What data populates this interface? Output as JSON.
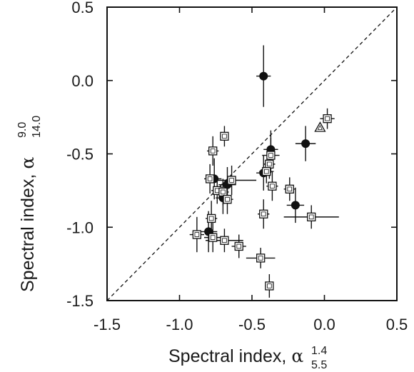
{
  "chart_data": {
    "type": "scatter",
    "xlabel": {
      "text": "Spectral index, ",
      "symbol": "α",
      "sub": "5.5",
      "sup": "1.4"
    },
    "ylabel": {
      "text": "Spectral index, ",
      "symbol": "α",
      "sub": "14.0",
      "sup": "9.0"
    },
    "xlim": [
      -1.5,
      0.5
    ],
    "ylim": [
      -1.5,
      0.5
    ],
    "xticks": [
      -1.5,
      -1.0,
      -0.5,
      0.0,
      0.5
    ],
    "yticks": [
      -1.5,
      -1.0,
      -0.5,
      0.0,
      0.5
    ],
    "xtick_labels": [
      "-1.5",
      "-1.0",
      "-0.5",
      "0.0",
      "0.5"
    ],
    "ytick_labels": [
      "-1.5",
      "-1.0",
      "-0.5",
      "0.0",
      "0.5"
    ],
    "grid": false,
    "reference_line": "y = x (dashed)",
    "colors": {
      "marker": "#111111",
      "fill_open": "#ffffff"
    },
    "series": [
      {
        "marker": "filled-circle",
        "points": [
          {
            "x": -0.42,
            "y": 0.03,
            "xerr": 0.05,
            "yerr": 0.21
          },
          {
            "x": -0.37,
            "y": -0.47,
            "xerr": 0.05,
            "yerr": 0.13
          },
          {
            "x": -0.13,
            "y": -0.43,
            "xerr": 0.07,
            "yerr": 0.12
          },
          {
            "x": -0.42,
            "y": -0.63,
            "xerr": 0.05,
            "yerr": 0.12
          },
          {
            "x": -0.76,
            "y": -0.67,
            "xerr": 0.05,
            "yerr": 0.14
          },
          {
            "x": -0.67,
            "y": -0.71,
            "xerr": 0.06,
            "yerr": 0.12
          },
          {
            "x": -0.7,
            "y": -0.8,
            "xerr": 0.05,
            "yerr": 0.11
          },
          {
            "x": -0.2,
            "y": -0.85,
            "xerr": 0.06,
            "yerr": 0.12
          },
          {
            "x": -0.8,
            "y": -1.03,
            "xerr": 0.06,
            "yerr": 0.14
          }
        ]
      },
      {
        "marker": "open-square",
        "points": [
          {
            "x": 0.02,
            "y": -0.26,
            "xerr": 0.05,
            "yerr": 0.07
          },
          {
            "x": -0.69,
            "y": -0.38,
            "xerr": 0.03,
            "yerr": 0.07
          },
          {
            "x": -0.77,
            "y": -0.48,
            "xerr": 0.04,
            "yerr": 0.1
          },
          {
            "x": -0.37,
            "y": -0.51,
            "xerr": 0.06,
            "yerr": 0.12
          },
          {
            "x": -0.38,
            "y": -0.57,
            "xerr": 0.04,
            "yerr": 0.1
          },
          {
            "x": -0.4,
            "y": -0.62,
            "xerr": 0.05,
            "yerr": 0.08
          },
          {
            "x": -0.79,
            "y": -0.67,
            "xerr": 0.04,
            "yerr": 0.1
          },
          {
            "x": -0.64,
            "y": -0.68,
            "xerr": 0.17,
            "yerr": 0.1
          },
          {
            "x": -0.36,
            "y": -0.72,
            "xerr": 0.04,
            "yerr": 0.1
          },
          {
            "x": -0.24,
            "y": -0.74,
            "xerr": 0.04,
            "yerr": 0.08
          },
          {
            "x": -0.74,
            "y": -0.75,
            "xerr": 0.04,
            "yerr": 0.09
          },
          {
            "x": -0.7,
            "y": -0.76,
            "xerr": 0.04,
            "yerr": 0.09
          },
          {
            "x": -0.67,
            "y": -0.81,
            "xerr": 0.04,
            "yerr": 0.1
          },
          {
            "x": -0.42,
            "y": -0.91,
            "xerr": 0.04,
            "yerr": 0.1
          },
          {
            "x": -0.09,
            "y": -0.93,
            "xerr": 0.19,
            "yerr": 0.08
          },
          {
            "x": -0.78,
            "y": -0.94,
            "xerr": 0.04,
            "yerr": 0.12
          },
          {
            "x": -0.88,
            "y": -1.05,
            "xerr": 0.05,
            "yerr": 0.12
          },
          {
            "x": -0.77,
            "y": -1.07,
            "xerr": 0.06,
            "yerr": 0.1
          },
          {
            "x": -0.69,
            "y": -1.09,
            "xerr": 0.13,
            "yerr": 0.08
          },
          {
            "x": -0.59,
            "y": -1.13,
            "xerr": 0.05,
            "yerr": 0.08
          },
          {
            "x": -0.44,
            "y": -1.21,
            "xerr": 0.1,
            "yerr": 0.07
          },
          {
            "x": -0.38,
            "y": -1.4,
            "xerr": 0.03,
            "yerr": 0.08
          }
        ]
      },
      {
        "marker": "open-triangle",
        "points": [
          {
            "x": -0.03,
            "y": -0.32,
            "xerr": 0.0,
            "yerr": 0.0
          }
        ]
      }
    ]
  }
}
